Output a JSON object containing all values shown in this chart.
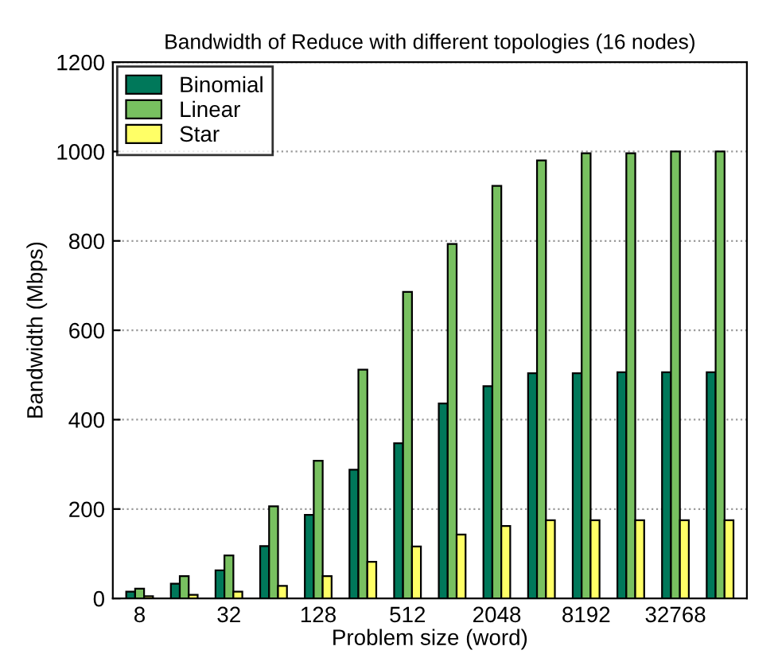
{
  "chart_data": {
    "type": "bar",
    "title": "Bandwidth of Reduce with different topologies (16 nodes)",
    "xlabel": "Problem size (word)",
    "ylabel": "Bandwidth (Mbps)",
    "categories": [
      "8",
      null,
      "32",
      null,
      "128",
      null,
      "512",
      null,
      "2048",
      null,
      "8192",
      null,
      "32768",
      null
    ],
    "series": [
      {
        "name": "Binomial",
        "color": "#00785a",
        "values": [
          15,
          33,
          63,
          117,
          187,
          288,
          347,
          436,
          475,
          504,
          504,
          506,
          506,
          506
        ]
      },
      {
        "name": "Linear",
        "color": "#78c060",
        "values": [
          22,
          50,
          96,
          206,
          308,
          512,
          686,
          793,
          923,
          980,
          996,
          996,
          1000,
          1000
        ]
      },
      {
        "name": "Star",
        "color": "#ffff66",
        "values": [
          5,
          8,
          15,
          28,
          50,
          82,
          116,
          143,
          162,
          175,
          175,
          175,
          175,
          175
        ]
      }
    ],
    "ylim": [
      0,
      1200
    ],
    "yticks": [
      0,
      200,
      400,
      600,
      800,
      1000,
      1200
    ],
    "grid": "y",
    "legend": "top left"
  }
}
